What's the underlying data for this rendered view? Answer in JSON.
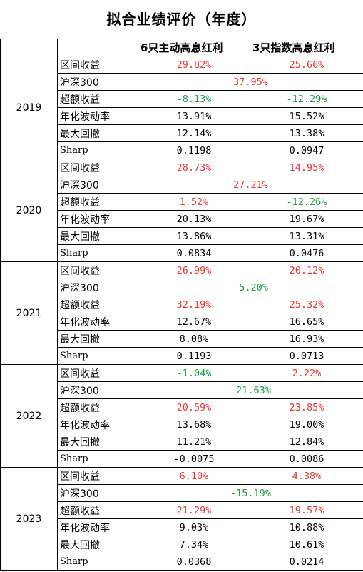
{
  "title": "拟合业绩评价（年度）",
  "colors": {
    "red": "#e8382f",
    "green": "#1f9a40",
    "black": "#000000"
  },
  "header": {
    "blank1": "",
    "blank2": "",
    "col1": "6只主动高息红利",
    "col2": "3只指数高息红利"
  },
  "years": [
    {
      "year": "2019",
      "rows": [
        {
          "metric": "区间收益",
          "c1": "29.82%",
          "c1_color": "red",
          "c2": "25.66%",
          "c2_color": "red"
        },
        {
          "metric": "沪深300",
          "merged": "37.95%",
          "merged_color": "red"
        },
        {
          "metric": "超额收益",
          "c1": "-8.13%",
          "c1_color": "green",
          "c2": "-12.29%",
          "c2_color": "green"
        },
        {
          "metric": "年化波动率",
          "c1": "13.91%",
          "c1_color": "black",
          "c2": "15.52%",
          "c2_color": "black"
        },
        {
          "metric": "最大回撤",
          "c1": "12.14%",
          "c1_color": "black",
          "c2": "13.38%",
          "c2_color": "black"
        },
        {
          "metric": "Sharp",
          "c1": "0.1198",
          "c1_color": "black",
          "c2": "0.0947",
          "c2_color": "black"
        }
      ]
    },
    {
      "year": "2020",
      "rows": [
        {
          "metric": "区间收益",
          "c1": "28.73%",
          "c1_color": "red",
          "c2": "14.95%",
          "c2_color": "red"
        },
        {
          "metric": "沪深300",
          "merged": "27.21%",
          "merged_color": "red"
        },
        {
          "metric": "超额收益",
          "c1": "1.52%",
          "c1_color": "red",
          "c2": "-12.26%",
          "c2_color": "green"
        },
        {
          "metric": "年化波动率",
          "c1": "20.13%",
          "c1_color": "black",
          "c2": "19.67%",
          "c2_color": "black"
        },
        {
          "metric": "最大回撤",
          "c1": "13.86%",
          "c1_color": "black",
          "c2": "13.31%",
          "c2_color": "black"
        },
        {
          "metric": "Sharp",
          "c1": "0.0834",
          "c1_color": "black",
          "c2": "0.0476",
          "c2_color": "black"
        }
      ]
    },
    {
      "year": "2021",
      "rows": [
        {
          "metric": "区间收益",
          "c1": "26.99%",
          "c1_color": "red",
          "c2": "20.12%",
          "c2_color": "red"
        },
        {
          "metric": "沪深300",
          "merged": "-5.20%",
          "merged_color": "green"
        },
        {
          "metric": "超额收益",
          "c1": "32.19%",
          "c1_color": "red",
          "c2": "25.32%",
          "c2_color": "red"
        },
        {
          "metric": "年化波动率",
          "c1": "12.67%",
          "c1_color": "black",
          "c2": "16.65%",
          "c2_color": "black"
        },
        {
          "metric": "最大回撤",
          "c1": "8.08%",
          "c1_color": "black",
          "c2": "16.93%",
          "c2_color": "black"
        },
        {
          "metric": "Sharp",
          "c1": "0.1193",
          "c1_color": "black",
          "c2": "0.0713",
          "c2_color": "black"
        }
      ]
    },
    {
      "year": "2022",
      "rows": [
        {
          "metric": "区间收益",
          "c1": "-1.04%",
          "c1_color": "green",
          "c2": "2.22%",
          "c2_color": "red"
        },
        {
          "metric": "沪深300",
          "merged": "-21.63%",
          "merged_color": "green"
        },
        {
          "metric": "超额收益",
          "c1": "20.59%",
          "c1_color": "red",
          "c2": "23.85%",
          "c2_color": "red"
        },
        {
          "metric": "年化波动率",
          "c1": "13.68%",
          "c1_color": "black",
          "c2": "19.00%",
          "c2_color": "black"
        },
        {
          "metric": "最大回撤",
          "c1": "11.21%",
          "c1_color": "black",
          "c2": "12.84%",
          "c2_color": "black"
        },
        {
          "metric": "Sharp",
          "c1": "-0.0075",
          "c1_color": "black",
          "c2": "0.0086",
          "c2_color": "black"
        }
      ]
    },
    {
      "year": "2023",
      "rows": [
        {
          "metric": "区间收益",
          "c1": "6.10%",
          "c1_color": "red",
          "c2": "4.38%",
          "c2_color": "red"
        },
        {
          "metric": "沪深300",
          "merged": "-15.19%",
          "merged_color": "green"
        },
        {
          "metric": "超额收益",
          "c1": "21.29%",
          "c1_color": "red",
          "c2": "19.57%",
          "c2_color": "red"
        },
        {
          "metric": "年化波动率",
          "c1": "9.03%",
          "c1_color": "black",
          "c2": "10.88%",
          "c2_color": "black"
        },
        {
          "metric": "最大回撤",
          "c1": "7.34%",
          "c1_color": "black",
          "c2": "10.61%",
          "c2_color": "black"
        },
        {
          "metric": "Sharp",
          "c1": "0.0368",
          "c1_color": "black",
          "c2": "0.0214",
          "c2_color": "black"
        }
      ]
    }
  ]
}
